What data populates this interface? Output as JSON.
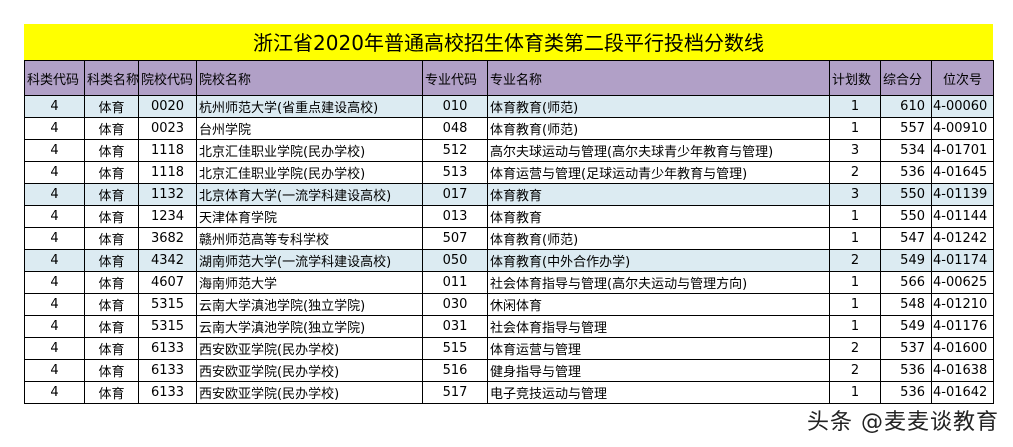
{
  "title": "浙江省2020年普通高校招生体育类第二段平行投档分数线",
  "colors": {
    "title_bg": "#ffff00",
    "header_bg": "#b1a0c7",
    "highlight_row_bg": "#dcebf2"
  },
  "headers": [
    "科类代码",
    "科类名称",
    "院校代码",
    "院校名称",
    "专业代码",
    "专业名称",
    "计划数",
    "综合分",
    "位次号"
  ],
  "rows": [
    {
      "kl_code": "4",
      "kl_name": "体育",
      "school_code": "0020",
      "school": "杭州师范大学(省重点建设高校)",
      "major_code": "010",
      "major": "体育教育(师范)",
      "plan": "1",
      "score": "610",
      "rank": "4-00060",
      "highlight": true
    },
    {
      "kl_code": "4",
      "kl_name": "体育",
      "school_code": "0023",
      "school": "台州学院",
      "major_code": "048",
      "major": "体育教育(师范)",
      "plan": "1",
      "score": "557",
      "rank": "4-00910",
      "highlight": false
    },
    {
      "kl_code": "4",
      "kl_name": "体育",
      "school_code": "1118",
      "school": "北京汇佳职业学院(民办学校)",
      "major_code": "512",
      "major": "高尔夫球运动与管理(高尔夫球青少年教育与管理)",
      "plan": "3",
      "score": "534",
      "rank": "4-01701",
      "highlight": false
    },
    {
      "kl_code": "4",
      "kl_name": "体育",
      "school_code": "1118",
      "school": "北京汇佳职业学院(民办学校)",
      "major_code": "513",
      "major": "体育运营与管理(足球运动青少年教育与管理)",
      "plan": "2",
      "score": "536",
      "rank": "4-01645",
      "highlight": false
    },
    {
      "kl_code": "4",
      "kl_name": "体育",
      "school_code": "1132",
      "school": "北京体育大学(一流学科建设高校)",
      "major_code": "017",
      "major": "体育教育",
      "plan": "3",
      "score": "550",
      "rank": "4-01139",
      "highlight": true
    },
    {
      "kl_code": "4",
      "kl_name": "体育",
      "school_code": "1234",
      "school": "天津体育学院",
      "major_code": "013",
      "major": "体育教育",
      "plan": "1",
      "score": "550",
      "rank": "4-01144",
      "highlight": false
    },
    {
      "kl_code": "4",
      "kl_name": "体育",
      "school_code": "3682",
      "school": "赣州师范高等专科学校",
      "major_code": "507",
      "major": "体育教育(师范)",
      "plan": "1",
      "score": "547",
      "rank": "4-01242",
      "highlight": false
    },
    {
      "kl_code": "4",
      "kl_name": "体育",
      "school_code": "4342",
      "school": "湖南师范大学(一流学科建设高校)",
      "major_code": "050",
      "major": "体育教育(中外合作办学)",
      "plan": "2",
      "score": "549",
      "rank": "4-01174",
      "highlight": true
    },
    {
      "kl_code": "4",
      "kl_name": "体育",
      "school_code": "4607",
      "school": "海南师范大学",
      "major_code": "011",
      "major": "社会体育指导与管理(高尔夫运动与管理方向)",
      "plan": "1",
      "score": "566",
      "rank": "4-00625",
      "highlight": false
    },
    {
      "kl_code": "4",
      "kl_name": "体育",
      "school_code": "5315",
      "school": "云南大学滇池学院(独立学院)",
      "major_code": "030",
      "major": "休闲体育",
      "plan": "1",
      "score": "548",
      "rank": "4-01210",
      "highlight": false
    },
    {
      "kl_code": "4",
      "kl_name": "体育",
      "school_code": "5315",
      "school": "云南大学滇池学院(独立学院)",
      "major_code": "031",
      "major": "社会体育指导与管理",
      "plan": "1",
      "score": "549",
      "rank": "4-01176",
      "highlight": false
    },
    {
      "kl_code": "4",
      "kl_name": "体育",
      "school_code": "6133",
      "school": "西安欧亚学院(民办学校)",
      "major_code": "515",
      "major": "体育运营与管理",
      "plan": "2",
      "score": "537",
      "rank": "4-01600",
      "highlight": false
    },
    {
      "kl_code": "4",
      "kl_name": "体育",
      "school_code": "6133",
      "school": "西安欧亚学院(民办学校)",
      "major_code": "516",
      "major": "健身指导与管理",
      "plan": "2",
      "score": "536",
      "rank": "4-01638",
      "highlight": false
    },
    {
      "kl_code": "4",
      "kl_name": "体育",
      "school_code": "6133",
      "school": "西安欧亚学院(民办学校)",
      "major_code": "517",
      "major": "电子竞技运动与管理",
      "plan": "1",
      "score": "536",
      "rank": "4-01642",
      "highlight": false
    }
  ],
  "watermark": "头条 @麦麦谈教育"
}
